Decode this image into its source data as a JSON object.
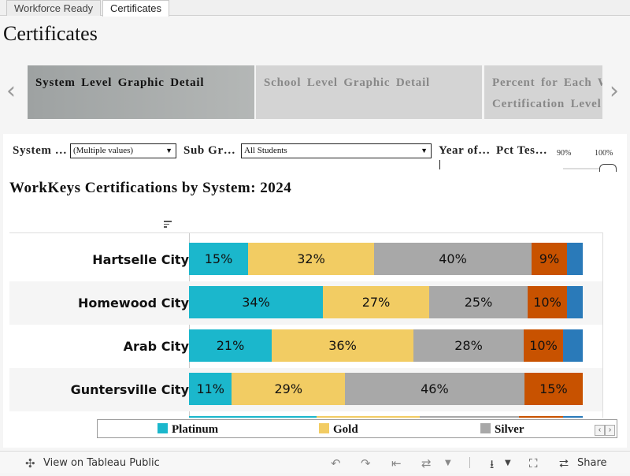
{
  "tabs": [
    {
      "label": "Workforce Ready",
      "active": false
    },
    {
      "label": "Certificates",
      "active": true
    }
  ],
  "page_title": "Certificates",
  "carousel": {
    "cards": [
      {
        "lines": [
          "System Level Graphic Detail"
        ],
        "selected": true
      },
      {
        "lines": [
          "School Level Graphic Detail"
        ],
        "selected": false
      },
      {
        "lines": [
          "Percent for Each W",
          "Certification Level I"
        ],
        "selected": false
      }
    ],
    "prev_icon": "chevron-left-icon",
    "next_icon": "chevron-right-icon"
  },
  "filters": {
    "system_label": "System …",
    "system_value": "(Multiple values)",
    "subgroup_label": "Sub Gr…",
    "subgroup_value": "All Students",
    "year_label": "Year of…",
    "pct_label": "Pct Tes…",
    "slider_min": "90%",
    "slider_max": "100%"
  },
  "chart_title": "WorkKeys Certifications by System: 2024",
  "chart_data": {
    "type": "bar",
    "orientation": "horizontal",
    "stacked": "100%",
    "title": "WorkKeys Certifications by System: 2024",
    "categories": [
      "Hartselle City",
      "Homewood City",
      "Arab City",
      "Guntersville City",
      ""
    ],
    "series": [
      {
        "name": "Platinum",
        "color": "#1bb7cc",
        "values": [
          15,
          34,
          21,
          11,
          32
        ]
      },
      {
        "name": "Gold",
        "color": "#f2cc63",
        "values": [
          32,
          27,
          36,
          29,
          26
        ]
      },
      {
        "name": "Silver",
        "color": "#a8a8a8",
        "values": [
          40,
          25,
          28,
          46,
          25
        ]
      },
      {
        "name": "",
        "color": "#c85200",
        "values": [
          9,
          10,
          10,
          15,
          11
        ]
      },
      {
        "name": "",
        "color": "#2a7ab9",
        "values": [
          4,
          4,
          5,
          0,
          5
        ]
      }
    ],
    "data_labels": [
      [
        "15%",
        "32%",
        "40%",
        "9%",
        ""
      ],
      [
        "34%",
        "27%",
        "25%",
        "10%",
        ""
      ],
      [
        "21%",
        "36%",
        "28%",
        "10%",
        ""
      ],
      [
        "11%",
        "29%",
        "46%",
        "15%",
        ""
      ],
      [
        "",
        "",
        "",
        "",
        ""
      ]
    ],
    "legend_position": "bottom",
    "grid": false
  },
  "legend": [
    {
      "label": "Platinum",
      "color": "#1bb7cc"
    },
    {
      "label": "Gold",
      "color": "#f2cc63"
    },
    {
      "label": "Silver",
      "color": "#a8a8a8"
    }
  ],
  "toolbar": {
    "view_label": "View on Tableau Public",
    "share_label": "Share"
  }
}
